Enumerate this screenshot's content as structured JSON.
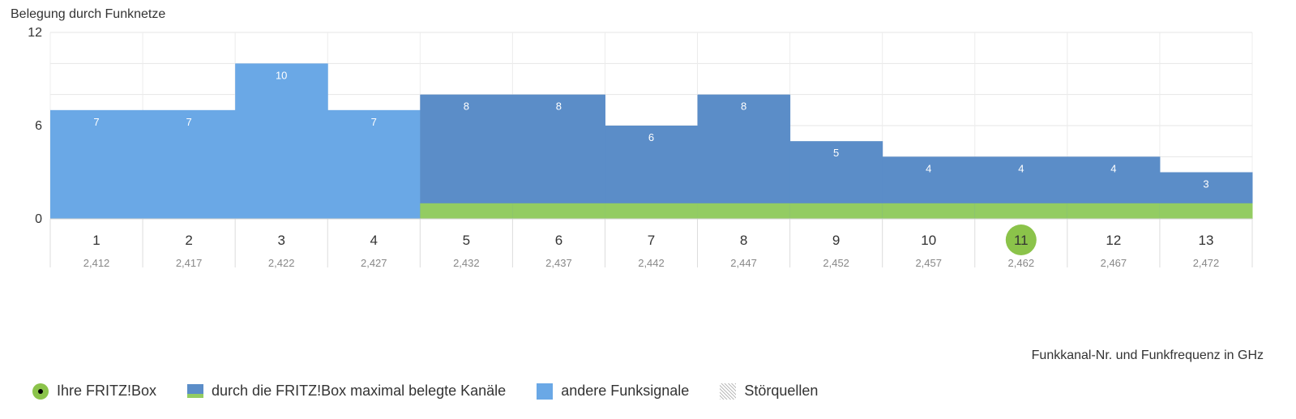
{
  "chart_data": {
    "type": "bar",
    "ylabel": "Belegung durch Funknetze",
    "xlabel": "Funkkanal-Nr. und Funkfrequenz in GHz",
    "ylim": [
      0,
      12
    ],
    "yticks": [
      0,
      6,
      12
    ],
    "categories": [
      "1",
      "2",
      "3",
      "4",
      "5",
      "6",
      "7",
      "8",
      "9",
      "10",
      "11",
      "12",
      "13"
    ],
    "frequencies": [
      "2,412",
      "2,417",
      "2,422",
      "2,427",
      "2,432",
      "2,437",
      "2,442",
      "2,447",
      "2,452",
      "2,457",
      "2,462",
      "2,467",
      "2,472"
    ],
    "values": [
      7,
      7,
      10,
      7,
      8,
      8,
      6,
      8,
      5,
      4,
      4,
      4,
      3
    ],
    "series_kind": [
      "other",
      "other",
      "other",
      "other",
      "max",
      "max",
      "max",
      "max",
      "max",
      "max",
      "max",
      "max",
      "max"
    ],
    "fritzbox_channel": "11",
    "fritzbox_band_height": 1,
    "grid": true,
    "legend_position": "bottom-left",
    "colors": {
      "max": "#5b8dc8",
      "other": "#6aa8e6",
      "fritz": "#93cc62",
      "fritz_marker": "#8bc34a"
    }
  },
  "legend": {
    "fritzbox": "Ihre FRITZ!Box",
    "max_channels": "durch die FRITZ!Box maximal belegte Kanäle",
    "other_signals": "andere Funksignale",
    "interference": "Störquellen"
  }
}
